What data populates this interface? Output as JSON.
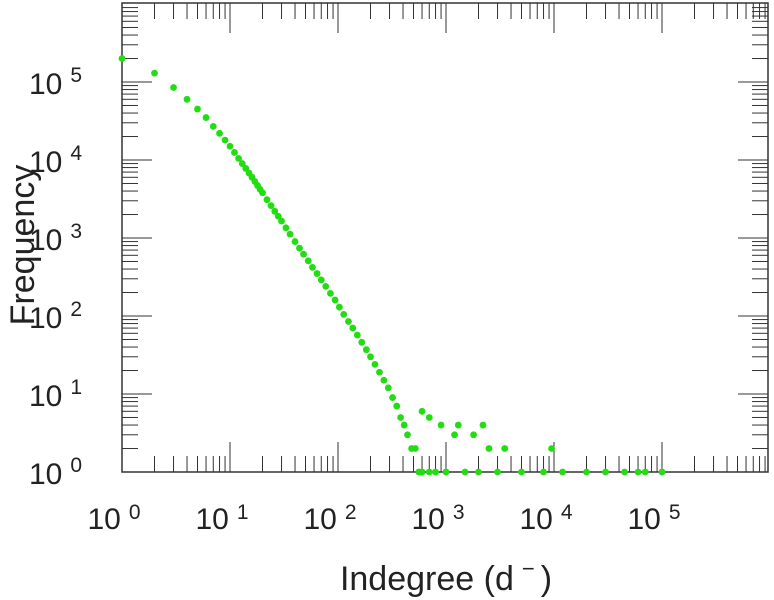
{
  "chart_data": {
    "type": "scatter",
    "xlabel": "Indegree (d",
    "xlabel_superscript": "−",
    "xlabel_close": ")",
    "ylabel": "Frequency",
    "x_scale": "log",
    "y_scale": "log",
    "xlim": [
      1,
      1000000
    ],
    "ylim": [
      1,
      1000000
    ],
    "grid": false,
    "marker_color": "#22dd11",
    "x_ticks": [
      {
        "base": "10",
        "exp": "0",
        "value": 1
      },
      {
        "base": "10",
        "exp": "1",
        "value": 10
      },
      {
        "base": "10",
        "exp": "2",
        "value": 100
      },
      {
        "base": "10",
        "exp": "3",
        "value": 1000
      },
      {
        "base": "10",
        "exp": "4",
        "value": 10000
      },
      {
        "base": "10",
        "exp": "5",
        "value": 100000
      }
    ],
    "y_ticks": [
      {
        "base": "10",
        "exp": "0",
        "value": 1
      },
      {
        "base": "10",
        "exp": "1",
        "value": 10
      },
      {
        "base": "10",
        "exp": "2",
        "value": 100
      },
      {
        "base": "10",
        "exp": "3",
        "value": 1000
      },
      {
        "base": "10",
        "exp": "4",
        "value": 10000
      },
      {
        "base": "10",
        "exp": "5",
        "value": 100000
      }
    ],
    "series": [
      {
        "points": [
          [
            1,
            200000
          ],
          [
            2,
            130000
          ],
          [
            3,
            85000
          ],
          [
            4,
            60000
          ],
          [
            5,
            45000
          ],
          [
            6,
            35000
          ],
          [
            7,
            27000
          ],
          [
            8,
            22000
          ],
          [
            9,
            18000
          ],
          [
            10,
            15000
          ],
          [
            11,
            12500
          ],
          [
            12,
            10500
          ],
          [
            13,
            9000
          ],
          [
            14,
            7800
          ],
          [
            15,
            6800
          ],
          [
            16,
            6000
          ],
          [
            17,
            5300
          ],
          [
            18,
            4700
          ],
          [
            19,
            4200
          ],
          [
            20,
            3800
          ],
          [
            22,
            3100
          ],
          [
            24,
            2600
          ],
          [
            26,
            2200
          ],
          [
            28,
            1900
          ],
          [
            30,
            1650
          ],
          [
            33,
            1350
          ],
          [
            36,
            1120
          ],
          [
            40,
            900
          ],
          [
            44,
            740
          ],
          [
            48,
            620
          ],
          [
            53,
            510
          ],
          [
            58,
            420
          ],
          [
            64,
            350
          ],
          [
            70,
            290
          ],
          [
            77,
            240
          ],
          [
            85,
            195
          ],
          [
            94,
            160
          ],
          [
            103,
            130
          ],
          [
            113,
            105
          ],
          [
            125,
            85
          ],
          [
            137,
            70
          ],
          [
            151,
            57
          ],
          [
            166,
            46
          ],
          [
            183,
            37
          ],
          [
            200,
            30
          ],
          [
            220,
            24
          ],
          [
            242,
            19
          ],
          [
            266,
            15
          ],
          [
            292,
            12
          ],
          [
            320,
            9
          ],
          [
            350,
            7
          ],
          [
            380,
            5
          ],
          [
            410,
            4
          ],
          [
            440,
            3
          ],
          [
            480,
            2
          ],
          [
            520,
            2
          ],
          [
            560,
            1
          ],
          [
            600,
            1
          ],
          [
            700,
            1
          ],
          [
            800,
            1
          ],
          [
            1000,
            1
          ],
          [
            1500,
            1
          ],
          [
            2000,
            1
          ],
          [
            3000,
            1
          ],
          [
            5000,
            1
          ],
          [
            8000,
            1
          ],
          [
            12000,
            1
          ],
          [
            20000,
            1
          ],
          [
            30000,
            1
          ],
          [
            45000,
            1
          ],
          [
            60000,
            1
          ],
          [
            70000,
            1
          ],
          [
            100000,
            1
          ],
          [
            9500,
            2
          ],
          [
            3500,
            2
          ],
          [
            2500,
            2
          ],
          [
            1800,
            3
          ],
          [
            1200,
            3
          ],
          [
            900,
            4
          ],
          [
            700,
            5
          ],
          [
            600,
            6
          ],
          [
            2200,
            4
          ],
          [
            1300,
            4
          ]
        ]
      }
    ]
  }
}
